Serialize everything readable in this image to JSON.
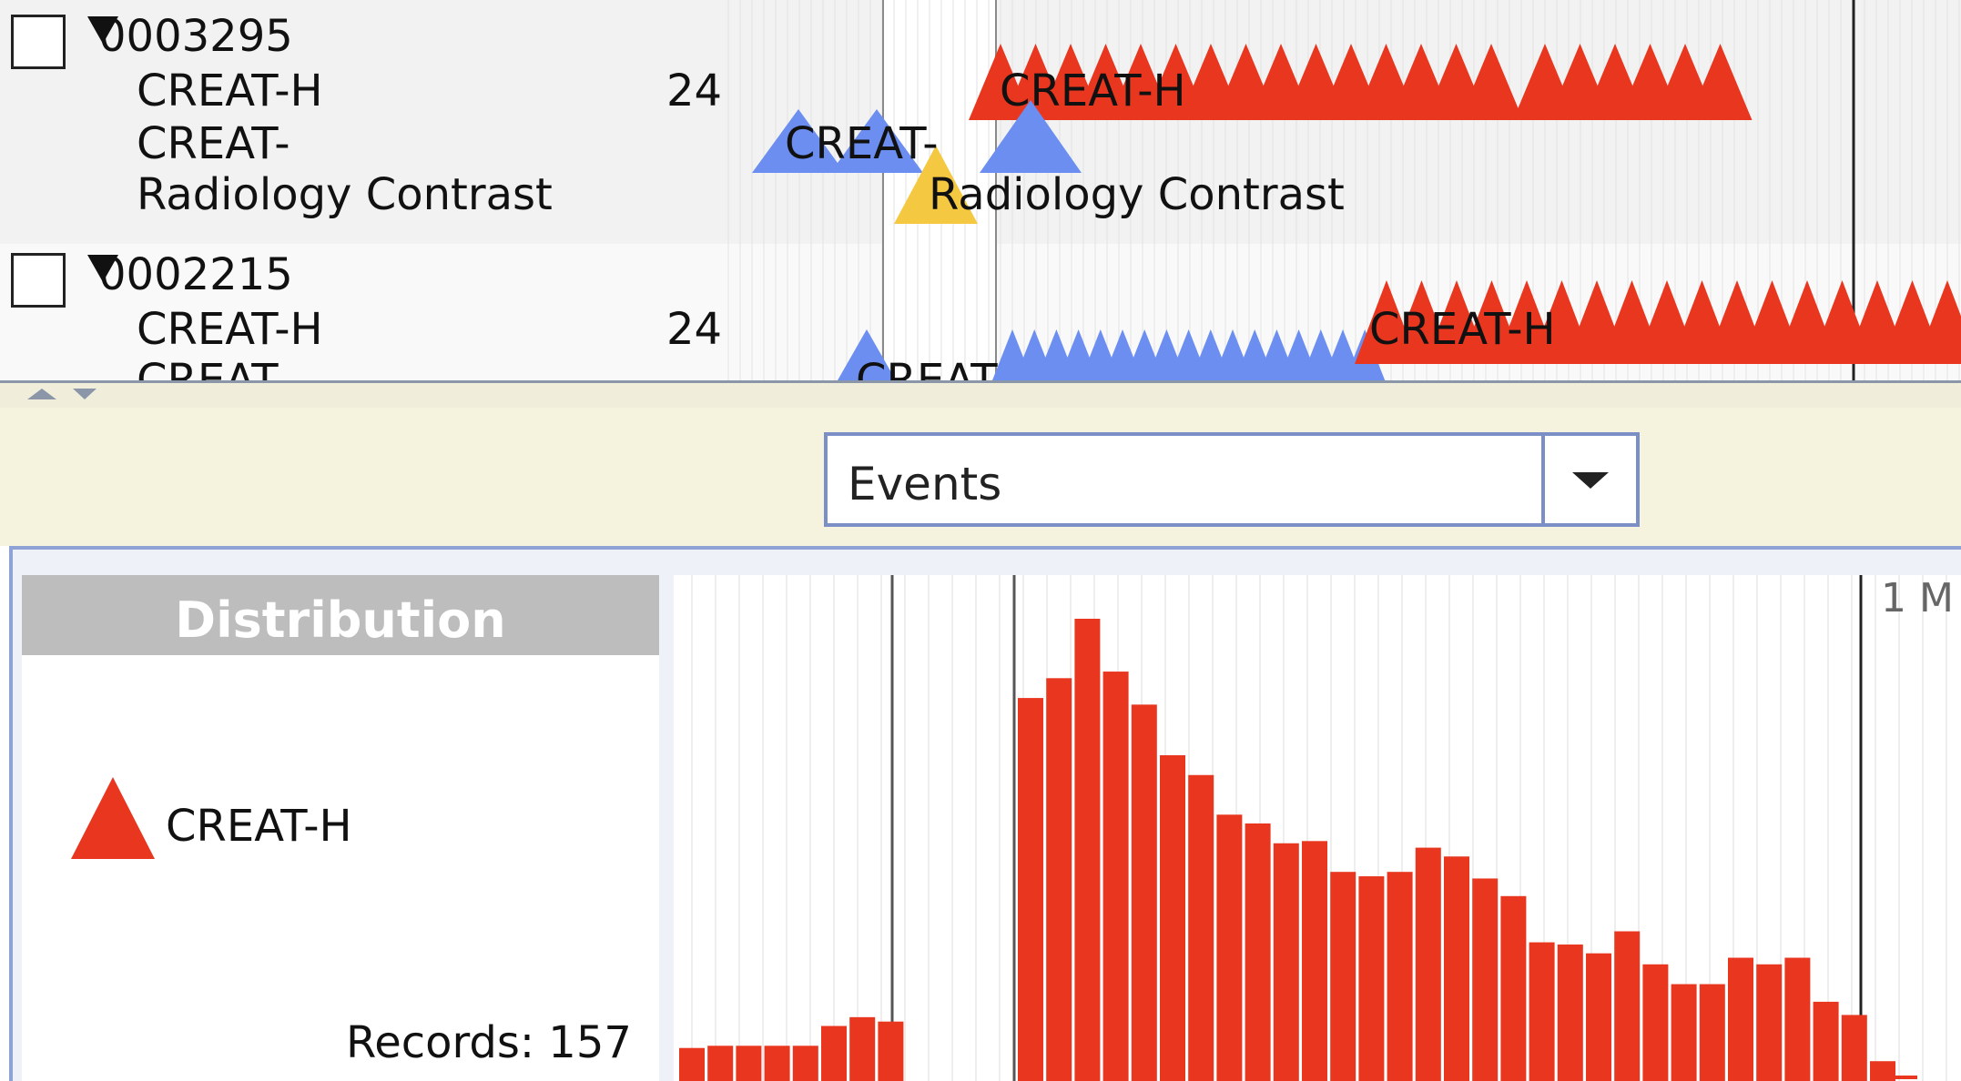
{
  "timeline": {
    "records": [
      {
        "id": "0003295",
        "rows": [
          {
            "name": "CREAT-H",
            "count": "24"
          },
          {
            "name": "CREAT-",
            "count": ""
          },
          {
            "name": "Radiology Contrast",
            "count": ""
          }
        ],
        "event_labels": [
          "CREAT-H",
          "CREAT-",
          "Radiology Contrast"
        ]
      },
      {
        "id": "0002215",
        "rows": [
          {
            "name": "CREAT-H",
            "count": "24"
          },
          {
            "name": "CREAT-",
            "count": ""
          }
        ],
        "event_labels": [
          "CREAT-H",
          "CREAT-"
        ]
      }
    ]
  },
  "view_select": {
    "selected": "Events"
  },
  "distribution": {
    "title": "Distribution",
    "legend_item": "CREAT-H",
    "records_label": "Records: 157",
    "axis_label": "1 M"
  },
  "colors": {
    "creat_h": "#e8361f",
    "creat": "#6b8ef0",
    "radiology_contrast": "#f5c842",
    "selection_band": "#ffffff"
  },
  "chart_data": {
    "type": "bar",
    "title": "Distribution",
    "series": [
      {
        "name": "CREAT-H",
        "values": [
          15,
          16,
          16,
          16,
          16,
          25,
          29,
          27,
          0,
          0,
          0,
          0,
          0,
          0,
          0,
          0,
          0,
          0,
          0,
          0,
          0,
          0,
          0,
          0,
          174,
          183,
          210,
          186,
          171,
          148,
          139,
          121,
          117,
          108,
          109,
          95,
          93,
          95,
          106,
          102,
          92,
          84,
          63,
          62,
          58,
          68,
          53,
          44,
          44,
          56,
          53,
          56,
          36,
          30,
          9
        ]
      }
    ],
    "xlabel": "",
    "ylabel": "",
    "grid": true
  }
}
